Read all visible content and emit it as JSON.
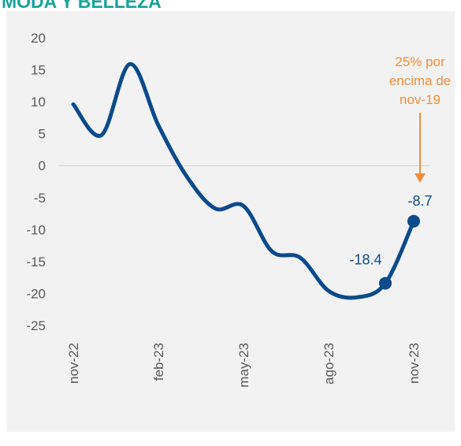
{
  "chart_data": {
    "type": "line",
    "title": "MODA Y BELLEZA",
    "categories": [
      "nov-22",
      null,
      null,
      "feb-23",
      null,
      null,
      "may-23",
      null,
      null,
      "ago-23",
      null,
      null,
      "nov-23"
    ],
    "series": [
      {
        "name": null,
        "color": "#0b4a8b",
        "values": [
          9.6,
          4.8,
          15.9,
          6.3,
          -1.7,
          -6.7,
          -6.3,
          -13.4,
          -14.4,
          -19.6,
          -20.6,
          -18.4,
          -8.7
        ],
        "value_labels": [
          null,
          null,
          null,
          null,
          null,
          null,
          null,
          null,
          null,
          null,
          null,
          "-18.4",
          "-8.7"
        ]
      }
    ],
    "ylim": [
      -25,
      20
    ],
    "yticks": [
      -25,
      -20,
      -15,
      -10,
      -5,
      0,
      5,
      10,
      15,
      20
    ],
    "annotation": {
      "lines": [
        "25% por",
        "encima de",
        "nov-19"
      ],
      "color": "#f28e3d"
    }
  }
}
